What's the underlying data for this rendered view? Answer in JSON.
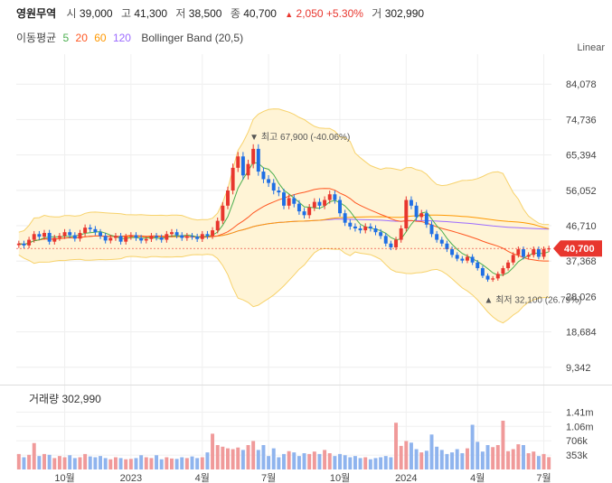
{
  "header": {
    "name": "영원무역",
    "open_label": "시",
    "open": "39,000",
    "high_label": "고",
    "high": "41,300",
    "low_label": "저",
    "low": "38,500",
    "close_label": "종",
    "close": "40,700",
    "change_arrow": "▲",
    "change": "2,050",
    "change_pct": "+5.30%",
    "volume_label": "거",
    "volume": "302,990"
  },
  "ma_legend": {
    "label": "이동평균",
    "periods": [
      {
        "text": "5",
        "color": "#4caf50"
      },
      {
        "text": "20",
        "color": "#ff5722"
      },
      {
        "text": "60",
        "color": "#ff9800"
      },
      {
        "text": "120",
        "color": "#9c6bff"
      }
    ],
    "bollinger": "Bollinger Band (20,5)"
  },
  "scale_label": "Linear",
  "chart_data": {
    "type": "candlestick",
    "y_ticks": [
      "84,078",
      "74,736",
      "65,394",
      "56,052",
      "46,710",
      "37,368",
      "28,026",
      "18,684",
      "9,342"
    ],
    "y_tick_values": [
      84078,
      74736,
      65394,
      56052,
      46710,
      37368,
      28026,
      18684,
      9342
    ],
    "ylim": [
      5000,
      92000
    ],
    "current_price_label": "40,700",
    "current_price": 40700,
    "max_annotation": "최고 67,900 (-40.06%)",
    "max_value": 67900,
    "min_annotation": "최저 32,100 (26.79%)",
    "min_value": 32100,
    "x_ticks": [
      "10월",
      "2023",
      "4월",
      "7월",
      "10월",
      "2024",
      "4월",
      "7월"
    ],
    "close_series": [
      42000,
      41500,
      43000,
      44500,
      43800,
      44800,
      42500,
      43500,
      44000,
      45000,
      44200,
      43300,
      44800,
      46200,
      45800,
      45000,
      44000,
      42800,
      43500,
      44000,
      42500,
      43800,
      44200,
      43500,
      42800,
      43200,
      44000,
      43600,
      43000,
      44500,
      45000,
      44200,
      43500,
      44000,
      43800,
      43200,
      44500,
      44000,
      45500,
      48000,
      52000,
      56000,
      62000,
      65000,
      60000,
      63000,
      67000,
      61000,
      59000,
      58000,
      56000,
      55500,
      52000,
      54000,
      52500,
      50500,
      49500,
      51500,
      53000,
      52000,
      53500,
      55000,
      53500,
      50000,
      47500,
      46500,
      46000,
      45500,
      46500,
      46000,
      45000,
      44000,
      42000,
      41000,
      43000,
      46000,
      53500,
      52000,
      49000,
      50000,
      47000,
      44500,
      43000,
      42000,
      40500,
      39000,
      38000,
      37500,
      38500,
      37000,
      35500,
      33500,
      32500,
      32800,
      34000,
      35500,
      37000,
      39000,
      40500,
      38500,
      39000,
      40500,
      38500,
      40500,
      40700
    ],
    "volume": {
      "label": "거래량",
      "value": "302,990",
      "y_ticks": [
        "1.41m",
        "1.06m",
        "706k",
        "353k"
      ],
      "y_tick_values": [
        1410000,
        1060000,
        706000,
        353000
      ],
      "ylim": [
        0,
        2000000
      ],
      "values": [
        380,
        300,
        360,
        650,
        330,
        380,
        360,
        280,
        330,
        300,
        350,
        280,
        300,
        380,
        320,
        300,
        330,
        280,
        250,
        300,
        280,
        250,
        260,
        280,
        350,
        300,
        280,
        350,
        250,
        300,
        270,
        260,
        300,
        280,
        320,
        280,
        300,
        420,
        880,
        600,
        560,
        520,
        500,
        540,
        480,
        600,
        700,
        480,
        600,
        330,
        520,
        300,
        380,
        450,
        420,
        330,
        400,
        380,
        440,
        380,
        480,
        400,
        330,
        380,
        350,
        300,
        330,
        280,
        300,
        250,
        280,
        300,
        330,
        300,
        1150,
        580,
        700,
        660,
        500,
        420,
        460,
        860,
        560,
        480,
        380,
        420,
        500,
        400,
        520,
        1100,
        680,
        440,
        600,
        550,
        600,
        1200,
        450,
        500,
        620,
        600,
        400,
        440,
        330,
        380,
        303
      ]
    }
  }
}
